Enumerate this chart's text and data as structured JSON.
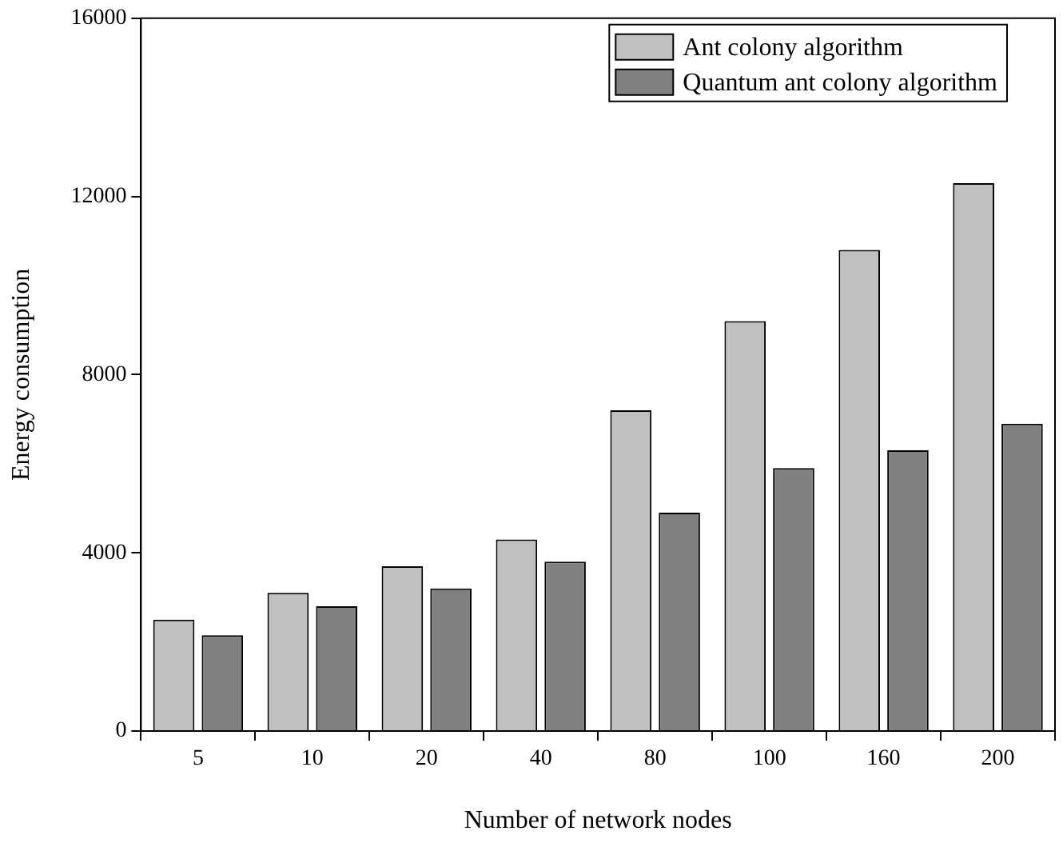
{
  "chart_data": {
    "type": "bar",
    "xlabel": "Number of network nodes",
    "ylabel": "Energy consumption",
    "categories": [
      "5",
      "10",
      "20",
      "40",
      "80",
      "100",
      "160",
      "200"
    ],
    "series": [
      {
        "name": "Ant colony algorithm",
        "color": "#c0c0c0",
        "values": [
          2500,
          3100,
          3700,
          4300,
          7200,
          9200,
          10800,
          12300
        ]
      },
      {
        "name": "Quantum ant colony algorithm",
        "color": "#808080",
        "values": [
          2150,
          2800,
          3200,
          3800,
          4900,
          5900,
          6300,
          6900
        ]
      }
    ],
    "ylim": [
      0,
      16000
    ],
    "yticks": [
      0,
      4000,
      8000,
      12000,
      16000
    ],
    "grid": false,
    "legend": "top right"
  }
}
